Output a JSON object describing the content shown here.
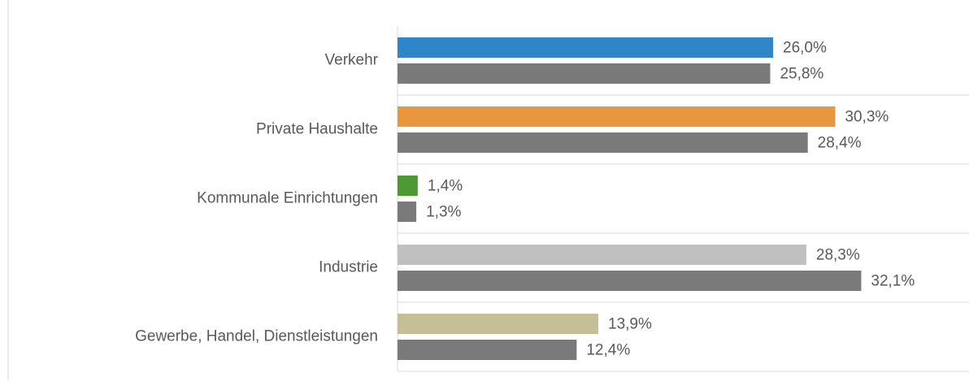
{
  "chart_data": {
    "type": "bar",
    "orientation": "horizontal",
    "categories": [
      "Verkehr",
      "Private Haushalte",
      "Kommunale Einrichtungen",
      "Industrie",
      "Gewerbe, Handel, Dienstleistungen"
    ],
    "series": [
      {
        "colors": [
          "#2e86c9",
          "#e8973f",
          "#4d9a35",
          "#c0c0c0",
          "#c6be96"
        ],
        "values": [
          26.0,
          30.3,
          1.4,
          28.3,
          13.9
        ],
        "value_labels": [
          "26,0%",
          "30,3%",
          "1,4%",
          "28,3%",
          "13,9%"
        ]
      },
      {
        "color": "#7a7a7a",
        "values": [
          25.8,
          28.4,
          1.3,
          32.1,
          12.4
        ],
        "value_labels": [
          "25,8%",
          "28,4%",
          "1,3%",
          "32,1%",
          "12,4%"
        ]
      }
    ]
  }
}
